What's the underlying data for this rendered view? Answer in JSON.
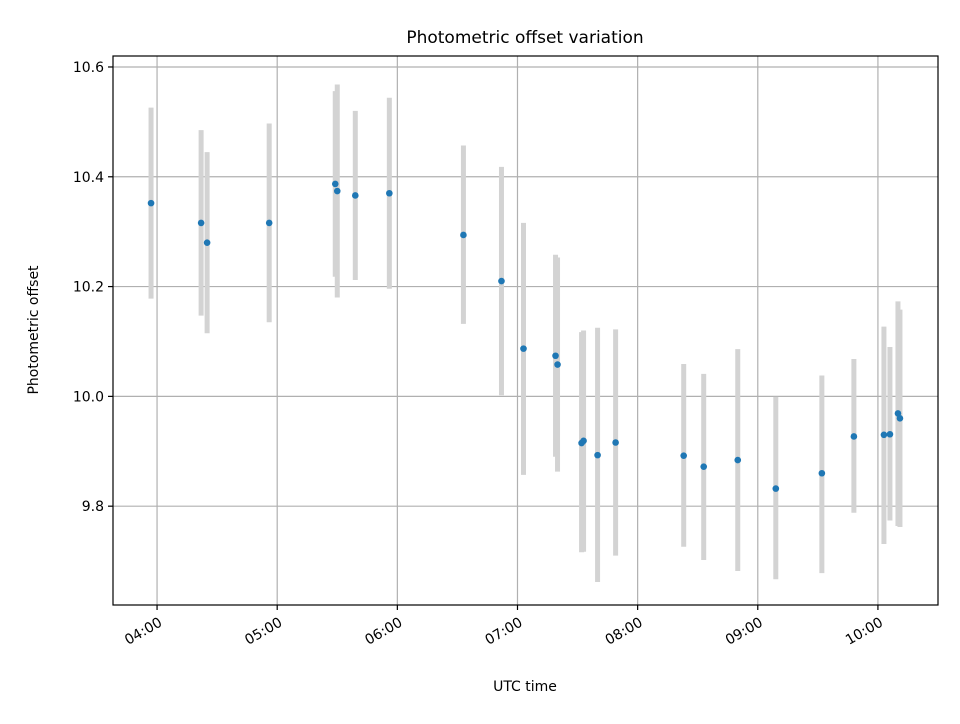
{
  "chart_data": {
    "type": "scatter",
    "title": "Photometric offset variation",
    "xlabel": "UTC time",
    "ylabel": "Photometric offset",
    "x_ticks": [
      "04:00",
      "05:00",
      "06:00",
      "07:00",
      "08:00",
      "09:00",
      "10:00"
    ],
    "y_ticks": [
      "9.8",
      "10.0",
      "10.2",
      "10.4",
      "10.6"
    ],
    "xlim": [
      "03:38",
      "10:30"
    ],
    "ylim": [
      9.62,
      10.62
    ],
    "grid": true,
    "legend": "none",
    "point_color": "#1f77b4",
    "errorbar_color": "#d3d3d3",
    "points": [
      {
        "x": "03:57",
        "y": 10.352,
        "ylow": 10.178,
        "yhigh": 10.526
      },
      {
        "x": "04:22",
        "y": 10.316,
        "ylow": 10.147,
        "yhigh": 10.485
      },
      {
        "x": "04:25",
        "y": 10.28,
        "ylow": 10.115,
        "yhigh": 10.445
      },
      {
        "x": "04:56",
        "y": 10.316,
        "ylow": 10.135,
        "yhigh": 10.497
      },
      {
        "x": "05:29",
        "y": 10.387,
        "ylow": 10.218,
        "yhigh": 10.556
      },
      {
        "x": "05:30",
        "y": 10.374,
        "ylow": 10.18,
        "yhigh": 10.568
      },
      {
        "x": "05:39",
        "y": 10.366,
        "ylow": 10.212,
        "yhigh": 10.52
      },
      {
        "x": "05:56",
        "y": 10.37,
        "ylow": 10.196,
        "yhigh": 10.544
      },
      {
        "x": "06:33",
        "y": 10.294,
        "ylow": 10.132,
        "yhigh": 10.457
      },
      {
        "x": "06:52",
        "y": 10.21,
        "ylow": 10.002,
        "yhigh": 10.418
      },
      {
        "x": "07:03",
        "y": 10.087,
        "ylow": 9.857,
        "yhigh": 10.316
      },
      {
        "x": "07:19",
        "y": 10.074,
        "ylow": 9.89,
        "yhigh": 10.258
      },
      {
        "x": "07:20",
        "y": 10.058,
        "ylow": 9.863,
        "yhigh": 10.253
      },
      {
        "x": "07:32",
        "y": 9.915,
        "ylow": 9.716,
        "yhigh": 10.117
      },
      {
        "x": "07:33",
        "y": 9.919,
        "ylow": 9.717,
        "yhigh": 10.12
      },
      {
        "x": "07:40",
        "y": 9.893,
        "ylow": 9.662,
        "yhigh": 10.125
      },
      {
        "x": "07:49",
        "y": 9.916,
        "ylow": 9.71,
        "yhigh": 10.122
      },
      {
        "x": "08:23",
        "y": 9.892,
        "ylow": 9.726,
        "yhigh": 10.059
      },
      {
        "x": "08:33",
        "y": 9.872,
        "ylow": 9.702,
        "yhigh": 10.041
      },
      {
        "x": "08:50",
        "y": 9.884,
        "ylow": 9.682,
        "yhigh": 10.086
      },
      {
        "x": "09:09",
        "y": 9.832,
        "ylow": 9.667,
        "yhigh": 9.999
      },
      {
        "x": "09:32",
        "y": 9.86,
        "ylow": 9.678,
        "yhigh": 10.038
      },
      {
        "x": "09:48",
        "y": 9.927,
        "ylow": 9.788,
        "yhigh": 10.068
      },
      {
        "x": "10:03",
        "y": 9.93,
        "ylow": 9.731,
        "yhigh": 10.127
      },
      {
        "x": "10:06",
        "y": 9.931,
        "ylow": 9.774,
        "yhigh": 10.09
      },
      {
        "x": "10:10",
        "y": 9.969,
        "ylow": 9.764,
        "yhigh": 10.173
      },
      {
        "x": "10:11",
        "y": 9.96,
        "ylow": 9.762,
        "yhigh": 10.158
      }
    ]
  }
}
